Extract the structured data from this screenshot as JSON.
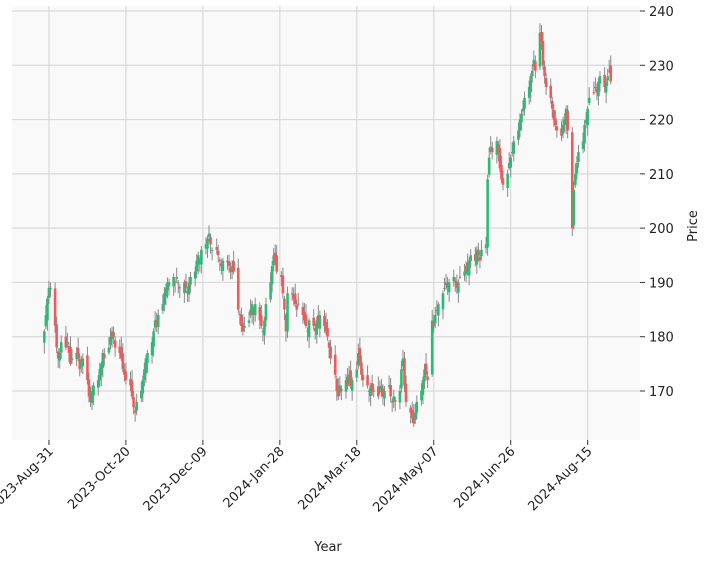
{
  "chart_data": {
    "type": "candlestick",
    "title": "",
    "xlabel": "Year",
    "ylabel": "Price",
    "ylim": [
      160,
      240
    ],
    "yticks": [
      170,
      180,
      190,
      200,
      210,
      220,
      230,
      240
    ],
    "xticks": [
      "2023-Aug-31",
      "2023-Oct-20",
      "2023-Dec-09",
      "2024-Jan-28",
      "2024-Mar-18",
      "2024-May-07",
      "2024-Jun-26",
      "2024-Aug-15"
    ],
    "xtick_dates": [
      "2023-08-31",
      "2023-10-20",
      "2023-12-09",
      "2024-01-28",
      "2024-03-18",
      "2024-05-07",
      "2024-06-26",
      "2024-08-15"
    ],
    "xlim": [
      "2023-08-07",
      "2024-09-18"
    ],
    "grid": true,
    "y_axis_side": "right",
    "start_date": "2023-08-28",
    "frequency": "business-day",
    "first_open": 180,
    "close": [
      181,
      184,
      187,
      189,
      189,
      182,
      178,
      176,
      177,
      179,
      178,
      179,
      177,
      175,
      176,
      177,
      176,
      174,
      175,
      176,
      172,
      169,
      168,
      170,
      171,
      172,
      174,
      175,
      177,
      176,
      178,
      180,
      181,
      180,
      178,
      177,
      176,
      174,
      173,
      172,
      171,
      169,
      167,
      166,
      168,
      170,
      172,
      174,
      176,
      177,
      179,
      181,
      183,
      182,
      184,
      186,
      188,
      189,
      190,
      190,
      191,
      190,
      191,
      190,
      189,
      190,
      189,
      188,
      190,
      191,
      192,
      194,
      195,
      194,
      196,
      197,
      198,
      199,
      197,
      196,
      196,
      195,
      194,
      193,
      194,
      194,
      193,
      192,
      193,
      192,
      185,
      184,
      182,
      181,
      182,
      183,
      185,
      186,
      184,
      186,
      183,
      182,
      181,
      183,
      186,
      190,
      193,
      195,
      194,
      192,
      191,
      188,
      185,
      181,
      188,
      188,
      187,
      186,
      185,
      186,
      184,
      183,
      182,
      181,
      183,
      182,
      181,
      183,
      182,
      184,
      182,
      181,
      180,
      178,
      176,
      173,
      170,
      169,
      171,
      170,
      172,
      171,
      173,
      171,
      172,
      174,
      177,
      175,
      173,
      172,
      171,
      170,
      171,
      170,
      170,
      169,
      170,
      171,
      169,
      170,
      171,
      169,
      168,
      169,
      168,
      170,
      174,
      176,
      171,
      168,
      166,
      165,
      164,
      166,
      168,
      170,
      172,
      174,
      173,
      172,
      183,
      182,
      184,
      185,
      186,
      188,
      189,
      190,
      189,
      190,
      191,
      190,
      189,
      190,
      191,
      192,
      193,
      192,
      194,
      195,
      194,
      196,
      195,
      194,
      196,
      197,
      209,
      213,
      215,
      214,
      216,
      214,
      211,
      209,
      208,
      210,
      212,
      213,
      214,
      216,
      218,
      220,
      221,
      222,
      224,
      226,
      228,
      229,
      231,
      229,
      236,
      234,
      230,
      228,
      226,
      224,
      222,
      220,
      219,
      218,
      217,
      219,
      220,
      222,
      218,
      200,
      207,
      210,
      212,
      214,
      216,
      219,
      220,
      222,
      224,
      225,
      226,
      225,
      227,
      228,
      226,
      227,
      228,
      229,
      227
    ],
    "colors": {
      "up": "#2dbb74",
      "down": "#ef5a5a",
      "wick": "#8a8a8a",
      "grid": "#d9d9d9",
      "background": "#f9f9f9"
    }
  }
}
